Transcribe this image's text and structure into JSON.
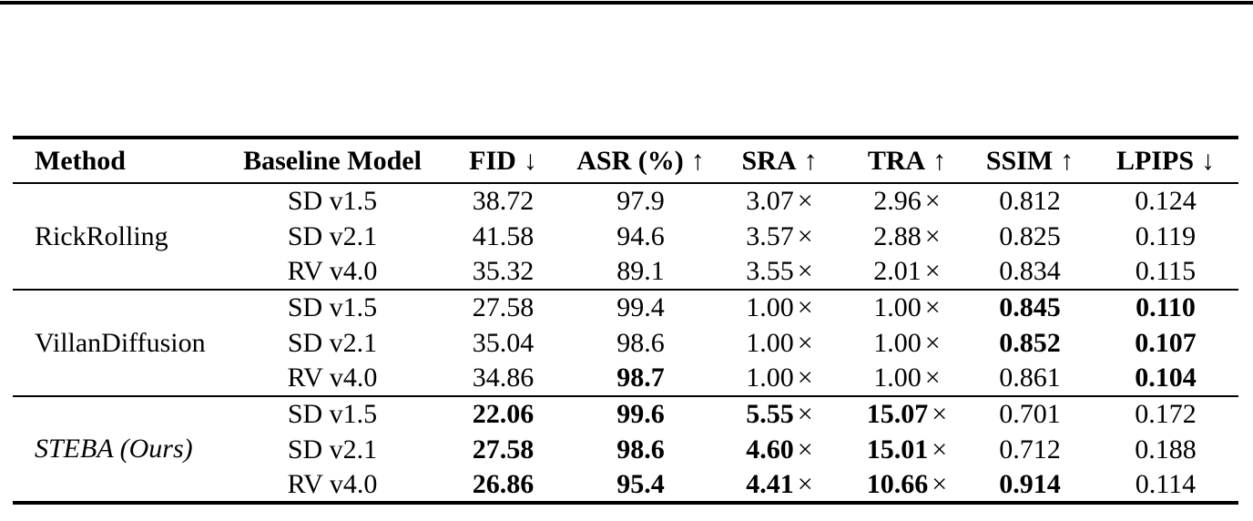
{
  "page": {
    "top_rule": "full-width horizontal black line at top edge"
  },
  "table": {
    "times_symbol": "×",
    "columns": [
      {
        "key": "method",
        "label": "Method",
        "arrow": ""
      },
      {
        "key": "baseline",
        "label": "Baseline Model",
        "arrow": ""
      },
      {
        "key": "fid",
        "label": "FID",
        "arrow": "↓"
      },
      {
        "key": "asr",
        "label": "ASR (%)",
        "arrow": "↑"
      },
      {
        "key": "sra",
        "label": "SRA",
        "arrow": "↑"
      },
      {
        "key": "tra",
        "label": "TRA",
        "arrow": "↑"
      },
      {
        "key": "ssim",
        "label": "SSIM",
        "arrow": "↑"
      },
      {
        "key": "lpips",
        "label": "LPIPS",
        "arrow": "↓"
      }
    ],
    "groups": [
      {
        "method": {
          "text": "RickRolling",
          "italic": false
        },
        "rows": [
          {
            "baseline": "SD v1.5",
            "fid": {
              "t": "38.72"
            },
            "asr": {
              "t": "97.9"
            },
            "sra": {
              "t": "3.07",
              "x": true
            },
            "tra": {
              "t": "2.96",
              "x": true
            },
            "ssim": {
              "t": "0.812"
            },
            "lpips": {
              "t": "0.124"
            }
          },
          {
            "baseline": "SD v2.1",
            "fid": {
              "t": "41.58"
            },
            "asr": {
              "t": "94.6"
            },
            "sra": {
              "t": "3.57",
              "x": true
            },
            "tra": {
              "t": "2.88",
              "x": true
            },
            "ssim": {
              "t": "0.825"
            },
            "lpips": {
              "t": "0.119"
            }
          },
          {
            "baseline": "RV v4.0",
            "fid": {
              "t": "35.32"
            },
            "asr": {
              "t": "89.1"
            },
            "sra": {
              "t": "3.55",
              "x": true
            },
            "tra": {
              "t": "2.01",
              "x": true
            },
            "ssim": {
              "t": "0.834"
            },
            "lpips": {
              "t": "0.115"
            }
          }
        ]
      },
      {
        "method": {
          "text": "VillanDiffusion",
          "italic": false
        },
        "rows": [
          {
            "baseline": "SD v1.5",
            "fid": {
              "t": "27.58"
            },
            "asr": {
              "t": "99.4"
            },
            "sra": {
              "t": "1.00",
              "x": true
            },
            "tra": {
              "t": "1.00",
              "x": true
            },
            "ssim": {
              "t": "0.845",
              "b": true
            },
            "lpips": {
              "t": "0.110",
              "b": true
            }
          },
          {
            "baseline": "SD v2.1",
            "fid": {
              "t": "35.04"
            },
            "asr": {
              "t": "98.6"
            },
            "sra": {
              "t": "1.00",
              "x": true
            },
            "tra": {
              "t": "1.00",
              "x": true
            },
            "ssim": {
              "t": "0.852",
              "b": true
            },
            "lpips": {
              "t": "0.107",
              "b": true
            }
          },
          {
            "baseline": "RV v4.0",
            "fid": {
              "t": "34.86"
            },
            "asr": {
              "t": "98.7",
              "b": true
            },
            "sra": {
              "t": "1.00",
              "x": true
            },
            "tra": {
              "t": "1.00",
              "x": true
            },
            "ssim": {
              "t": "0.861"
            },
            "lpips": {
              "t": "0.104",
              "b": true
            }
          }
        ]
      },
      {
        "method": {
          "text": "STEBA (Ours)",
          "italic": true
        },
        "rows": [
          {
            "baseline": "SD v1.5",
            "fid": {
              "t": "22.06",
              "b": true
            },
            "asr": {
              "t": "99.6",
              "b": true
            },
            "sra": {
              "t": "5.55",
              "x": true,
              "b": true
            },
            "tra": {
              "t": "15.07",
              "x": true,
              "b": true
            },
            "ssim": {
              "t": "0.701"
            },
            "lpips": {
              "t": "0.172"
            }
          },
          {
            "baseline": "SD v2.1",
            "fid": {
              "t": "27.58",
              "b": true
            },
            "asr": {
              "t": "98.6",
              "b": true
            },
            "sra": {
              "t": "4.60",
              "x": true,
              "b": true
            },
            "tra": {
              "t": "15.01",
              "x": true,
              "b": true
            },
            "ssim": {
              "t": "0.712"
            },
            "lpips": {
              "t": "0.188"
            }
          },
          {
            "baseline": "RV v4.0",
            "fid": {
              "t": "26.86",
              "b": true
            },
            "asr": {
              "t": "95.4",
              "b": true
            },
            "sra": {
              "t": "4.41",
              "x": true,
              "b": true
            },
            "tra": {
              "t": "10.66",
              "x": true,
              "b": true
            },
            "ssim": {
              "t": "0.914",
              "b": true
            },
            "lpips": {
              "t": "0.114"
            }
          }
        ]
      }
    ]
  }
}
